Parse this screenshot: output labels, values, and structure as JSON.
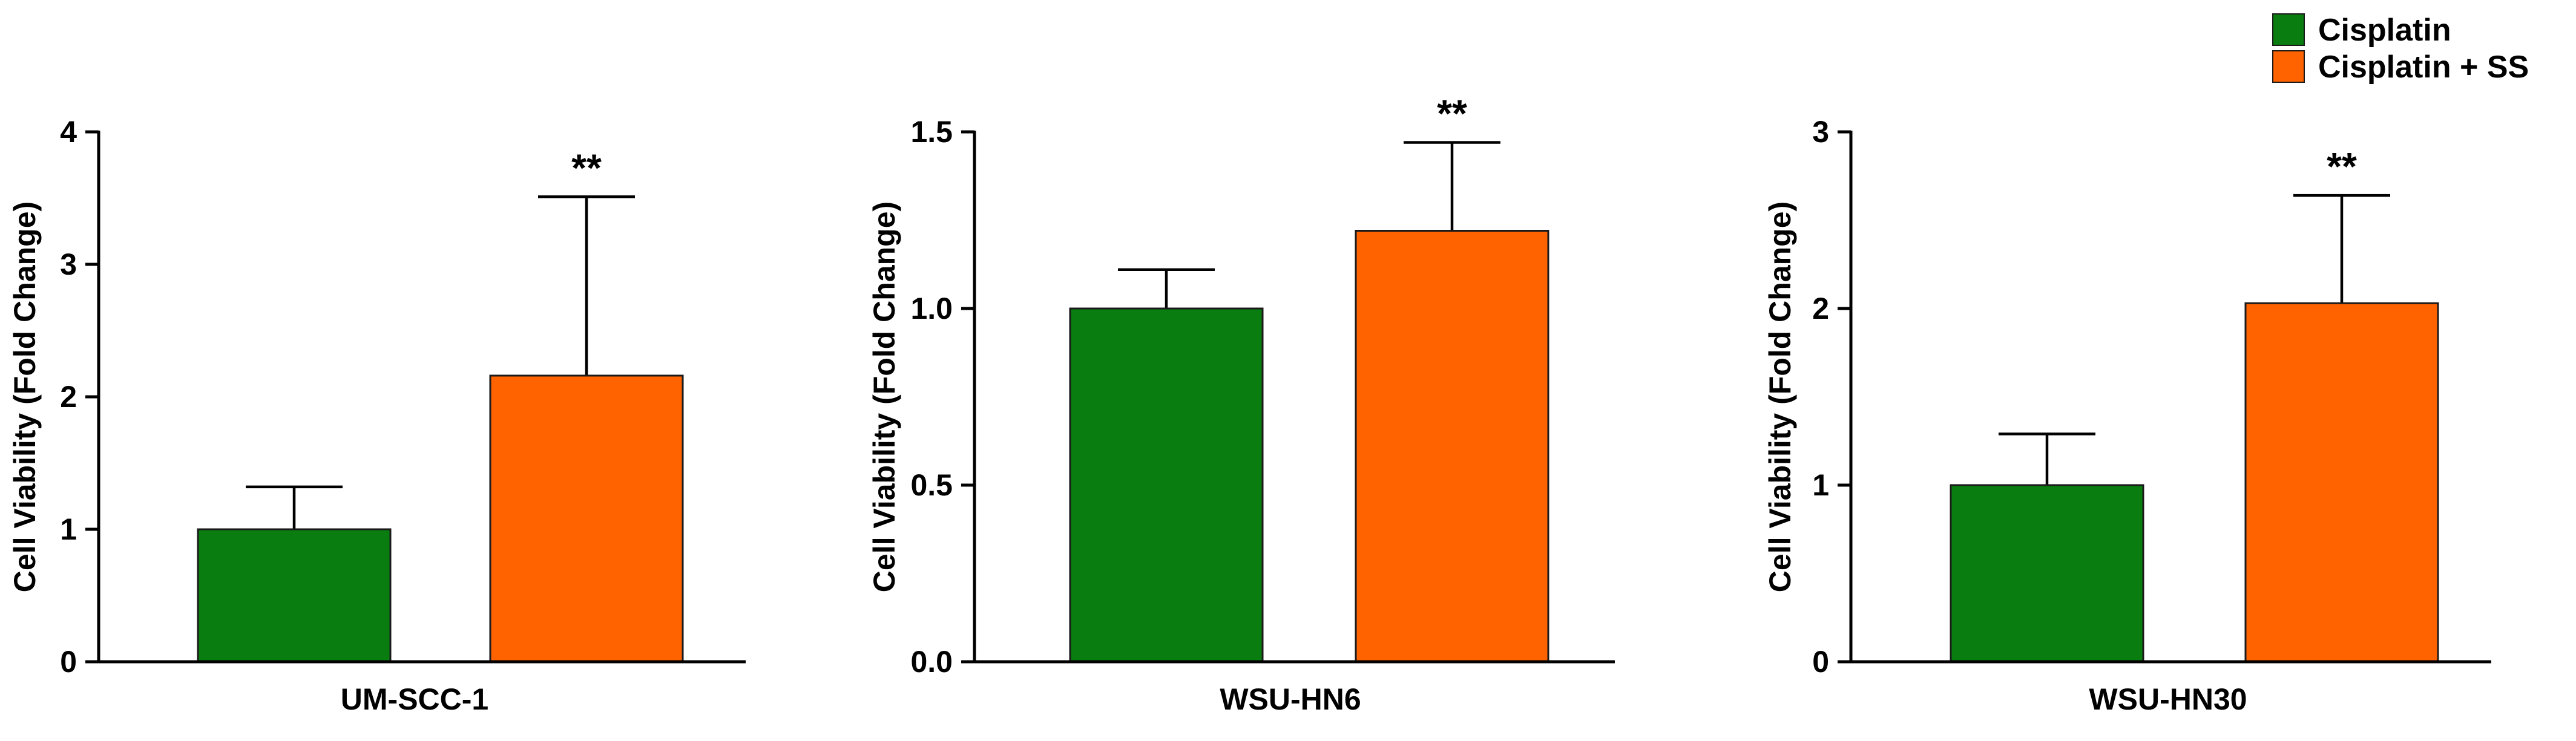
{
  "legend": {
    "placement": "top-right",
    "items": [
      {
        "label": "Cisplatin",
        "color": "#0a7d10"
      },
      {
        "label": "Cisplatin + SS",
        "color": "#ff6300"
      }
    ]
  },
  "chart_data": [
    {
      "type": "bar",
      "title": "",
      "xlabel": "UM-SCC-1",
      "ylabel": "Cell Viability (Fold Change)",
      "ylim": [
        0,
        4
      ],
      "yticks": [
        0,
        1,
        2,
        3,
        4
      ],
      "ytick_labels": [
        "0",
        "1",
        "2",
        "3",
        "4"
      ],
      "grid": false,
      "series": [
        {
          "name": "Cisplatin",
          "color": "#0a7d10",
          "value": 1.0,
          "error": 0.32
        },
        {
          "name": "Cisplatin + SS",
          "color": "#ff6300",
          "value": 2.16,
          "error": 1.35
        }
      ],
      "annotations": [
        {
          "series": "Cisplatin + SS",
          "text": "**"
        }
      ]
    },
    {
      "type": "bar",
      "title": "",
      "xlabel": "WSU-HN6",
      "ylabel": "Cell Viability (Fold Change)",
      "ylim": [
        0,
        1.5
      ],
      "yticks": [
        0,
        0.5,
        1.0,
        1.5
      ],
      "ytick_labels": [
        "0.0",
        "0.5",
        "1.0",
        "1.5"
      ],
      "grid": false,
      "series": [
        {
          "name": "Cisplatin",
          "color": "#0a7d10",
          "value": 1.0,
          "error": 0.11
        },
        {
          "name": "Cisplatin + SS",
          "color": "#ff6300",
          "value": 1.22,
          "error": 0.25
        }
      ],
      "annotations": [
        {
          "series": "Cisplatin + SS",
          "text": "**"
        }
      ]
    },
    {
      "type": "bar",
      "title": "",
      "xlabel": "WSU-HN30",
      "ylabel": "Cell Viability (Fold Change)",
      "ylim": [
        0,
        3
      ],
      "yticks": [
        0,
        1,
        2,
        3
      ],
      "ytick_labels": [
        "0",
        "1",
        "2",
        "3"
      ],
      "grid": false,
      "series": [
        {
          "name": "Cisplatin",
          "color": "#0a7d10",
          "value": 1.0,
          "error": 0.29
        },
        {
          "name": "Cisplatin + SS",
          "color": "#ff6300",
          "value": 2.03,
          "error": 0.61
        }
      ],
      "annotations": [
        {
          "series": "Cisplatin + SS",
          "text": "**"
        }
      ]
    }
  ]
}
